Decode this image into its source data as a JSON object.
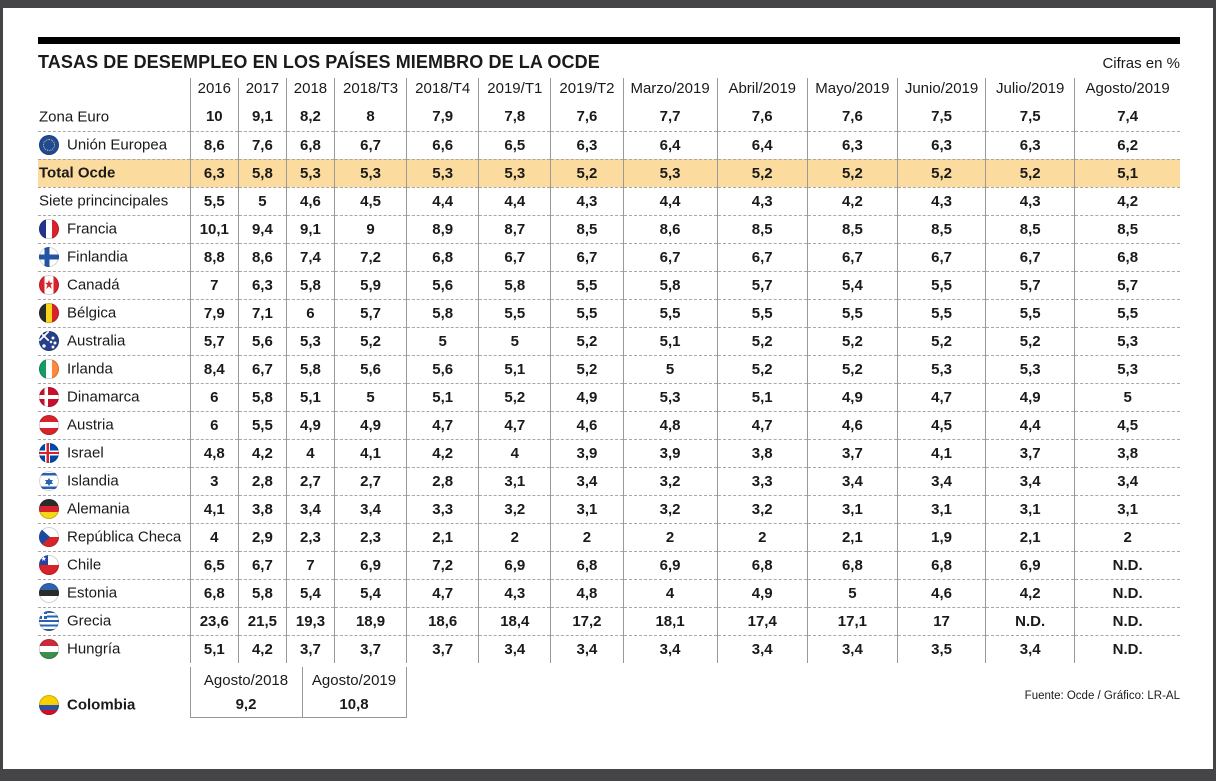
{
  "title": "TASAS DE DESEMPLEO EN LOS PAÍSES MIEMBRO DE LA OCDE",
  "units_note": "Cifras en %",
  "footer": "Fuente: Ocde / Gráfico: LR-AL",
  "highlight_color": "#FBDC9E",
  "chart_data": {
    "type": "table",
    "columns": [
      "2016",
      "2017",
      "2018",
      "2018/T3",
      "2018/T4",
      "2019/T1",
      "2019/T2",
      "Marzo/2019",
      "Abril/2019",
      "Mayo/2019",
      "Junio/2019",
      "Julio/2019",
      "Agosto/2019"
    ],
    "rows": [
      {
        "label": "Zona Euro",
        "flag": null,
        "highlight": false,
        "values": [
          "10",
          "9,1",
          "8,2",
          "8",
          "7,9",
          "7,8",
          "7,6",
          "7,7",
          "7,6",
          "7,6",
          "7,5",
          "7,5",
          "7,4"
        ]
      },
      {
        "label": "Unión Europea",
        "flag": "eu",
        "highlight": false,
        "values": [
          "8,6",
          "7,6",
          "6,8",
          "6,7",
          "6,6",
          "6,5",
          "6,3",
          "6,4",
          "6,4",
          "6,3",
          "6,3",
          "6,3",
          "6,2"
        ]
      },
      {
        "label": "Total Ocde",
        "flag": null,
        "highlight": true,
        "values": [
          "6,3",
          "5,8",
          "5,3",
          "5,3",
          "5,3",
          "5,3",
          "5,2",
          "5,3",
          "5,2",
          "5,2",
          "5,2",
          "5,2",
          "5,1"
        ]
      },
      {
        "label": "Siete princincipales",
        "flag": null,
        "highlight": false,
        "values": [
          "5,5",
          "5",
          "4,6",
          "4,5",
          "4,4",
          "4,4",
          "4,3",
          "4,4",
          "4,3",
          "4,2",
          "4,3",
          "4,3",
          "4,2"
        ]
      },
      {
        "label": "Francia",
        "flag": "france",
        "highlight": false,
        "values": [
          "10,1",
          "9,4",
          "9,1",
          "9",
          "8,9",
          "8,7",
          "8,5",
          "8,6",
          "8,5",
          "8,5",
          "8,5",
          "8,5",
          "8,5"
        ]
      },
      {
        "label": "Finlandia",
        "flag": "finland",
        "highlight": false,
        "values": [
          "8,8",
          "8,6",
          "7,4",
          "7,2",
          "6,8",
          "6,7",
          "6,7",
          "6,7",
          "6,7",
          "6,7",
          "6,7",
          "6,7",
          "6,8"
        ]
      },
      {
        "label": "Canadá",
        "flag": "canada",
        "highlight": false,
        "values": [
          "7",
          "6,3",
          "5,8",
          "5,9",
          "5,6",
          "5,8",
          "5,5",
          "5,8",
          "5,7",
          "5,4",
          "5,5",
          "5,7",
          "5,7"
        ]
      },
      {
        "label": "Bélgica",
        "flag": "belgium",
        "highlight": false,
        "values": [
          "7,9",
          "7,1",
          "6",
          "5,7",
          "5,8",
          "5,5",
          "5,5",
          "5,5",
          "5,5",
          "5,5",
          "5,5",
          "5,5",
          "5,5"
        ]
      },
      {
        "label": "Australia",
        "flag": "australia",
        "highlight": false,
        "values": [
          "5,7",
          "5,6",
          "5,3",
          "5,2",
          "5",
          "5",
          "5,2",
          "5,1",
          "5,2",
          "5,2",
          "5,2",
          "5,2",
          "5,3"
        ]
      },
      {
        "label": "Irlanda",
        "flag": "ireland",
        "highlight": false,
        "values": [
          "8,4",
          "6,7",
          "5,8",
          "5,6",
          "5,6",
          "5,1",
          "5,2",
          "5",
          "5,2",
          "5,2",
          "5,3",
          "5,3",
          "5,3"
        ]
      },
      {
        "label": "Dinamarca",
        "flag": "denmark",
        "highlight": false,
        "values": [
          "6",
          "5,8",
          "5,1",
          "5",
          "5,1",
          "5,2",
          "4,9",
          "5,3",
          "5,1",
          "4,9",
          "4,7",
          "4,9",
          "5"
        ]
      },
      {
        "label": "Austria",
        "flag": "austria",
        "highlight": false,
        "values": [
          "6",
          "5,5",
          "4,9",
          "4,9",
          "4,7",
          "4,7",
          "4,6",
          "4,8",
          "4,7",
          "4,6",
          "4,5",
          "4,4",
          "4,5"
        ]
      },
      {
        "label": "Israel",
        "flag": "iceland",
        "highlight": false,
        "values": [
          "4,8",
          "4,2",
          "4",
          "4,1",
          "4,2",
          "4",
          "3,9",
          "3,9",
          "3,8",
          "3,7",
          "4,1",
          "3,7",
          "3,8"
        ]
      },
      {
        "label": "Islandia",
        "flag": "israel",
        "highlight": false,
        "values": [
          "3",
          "2,8",
          "2,7",
          "2,7",
          "2,8",
          "3,1",
          "3,4",
          "3,2",
          "3,3",
          "3,4",
          "3,4",
          "3,4",
          "3,4"
        ]
      },
      {
        "label": "Alemania",
        "flag": "germany",
        "highlight": false,
        "values": [
          "4,1",
          "3,8",
          "3,4",
          "3,4",
          "3,3",
          "3,2",
          "3,1",
          "3,2",
          "3,2",
          "3,1",
          "3,1",
          "3,1",
          "3,1"
        ]
      },
      {
        "label": "República Checa",
        "flag": "czech",
        "highlight": false,
        "values": [
          "4",
          "2,9",
          "2,3",
          "2,3",
          "2,1",
          "2",
          "2",
          "2",
          "2",
          "2,1",
          "1,9",
          "2,1",
          "2"
        ]
      },
      {
        "label": "Chile",
        "flag": "chile",
        "highlight": false,
        "values": [
          "6,5",
          "6,7",
          "7",
          "6,9",
          "7,2",
          "6,9",
          "6,8",
          "6,9",
          "6,8",
          "6,8",
          "6,8",
          "6,9",
          "N.D."
        ]
      },
      {
        "label": "Estonia",
        "flag": "estonia",
        "highlight": false,
        "values": [
          "6,8",
          "5,8",
          "5,4",
          "5,4",
          "4,7",
          "4,3",
          "4,8",
          "4",
          "4,9",
          "5",
          "4,6",
          "4,2",
          "N.D."
        ]
      },
      {
        "label": "Grecia",
        "flag": "greece",
        "highlight": false,
        "values": [
          "23,6",
          "21,5",
          "19,3",
          "18,9",
          "18,6",
          "18,4",
          "17,2",
          "18,1",
          "17,4",
          "17,1",
          "17",
          "N.D.",
          "N.D."
        ]
      },
      {
        "label": "Hungría",
        "flag": "hungary",
        "highlight": false,
        "values": [
          "5,1",
          "4,2",
          "3,7",
          "3,7",
          "3,7",
          "3,4",
          "3,4",
          "3,4",
          "3,4",
          "3,4",
          "3,5",
          "3,4",
          "N.D."
        ]
      }
    ],
    "colombia": {
      "label": "Colombia",
      "flag": "colombia",
      "columns": [
        "Agosto/2018",
        "Agosto/2019"
      ],
      "values": [
        "9,2",
        "10,8"
      ]
    }
  }
}
